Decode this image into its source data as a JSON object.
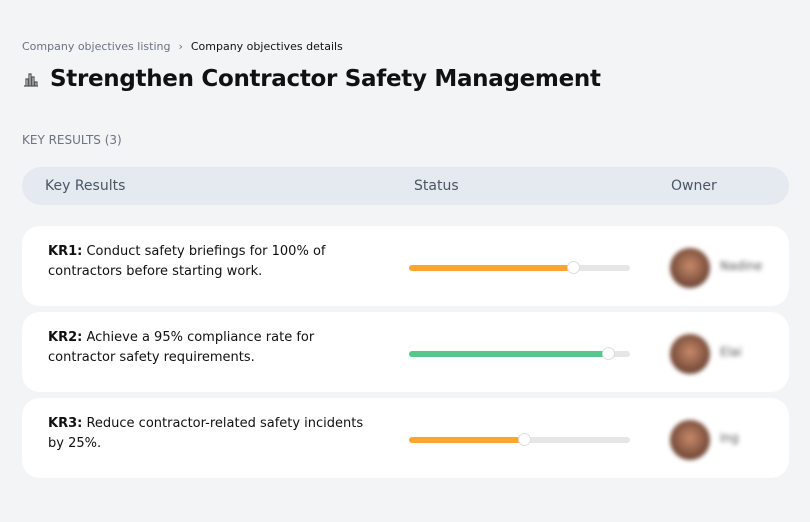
{
  "breadcrumb": {
    "parent": "Company objectives listing",
    "separator": "›",
    "current": "Company objectives details"
  },
  "title": "Strengthen Contractor Safety Management",
  "title_icon": "building-chart-icon",
  "section": "KEY RESULTS (3)",
  "columns": [
    "Key Results",
    "Status",
    "Owner"
  ],
  "key_results": [
    {
      "code": "KR1:",
      "text": "Conduct safety briefings for 100% of contractors before starting work.",
      "progress": 74,
      "color": "#fca630",
      "owner": "Nadine"
    },
    {
      "code": "KR2:",
      "text": "Achieve a 95% compliance rate for contractor safety requirements.",
      "progress": 90,
      "color": "#57c78d",
      "owner": "Elai"
    },
    {
      "code": "KR3:",
      "text": "Reduce contractor-related safety incidents by 25%.",
      "progress": 52,
      "color": "#fca630",
      "owner": "Ing"
    }
  ]
}
